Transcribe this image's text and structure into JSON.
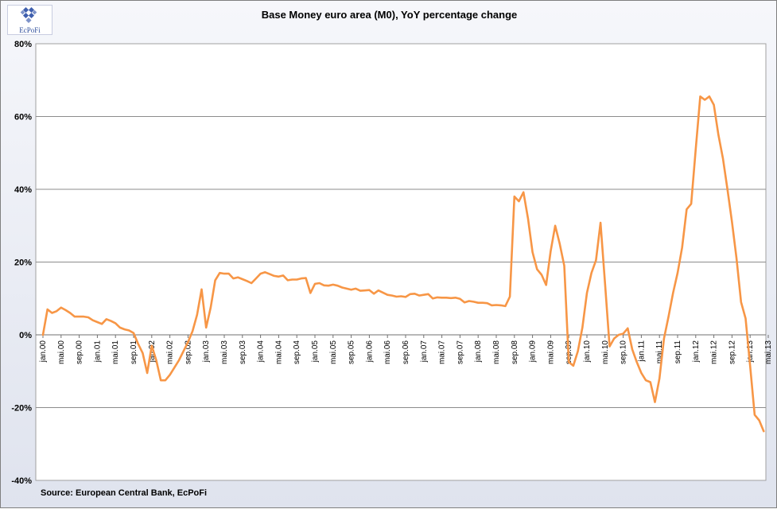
{
  "logo": {
    "text": "EcPoFi",
    "icon": "ecpofi-logo-icon"
  },
  "source": "Source: European  Central Bank, EcPoFi",
  "chart_data": {
    "type": "line",
    "title": "Base Money euro area (M0), YoY percentage change",
    "xlabel": "",
    "ylabel": "",
    "ylim": [
      -40,
      80
    ],
    "y_ticks": [
      -40,
      -20,
      0,
      20,
      40,
      60,
      80
    ],
    "y_tick_labels": [
      "-40%",
      "-20%",
      "0%",
      "20%",
      "40%",
      "60%",
      "80%"
    ],
    "grid": "horizontal",
    "legend": "none",
    "line_color": "#f79646",
    "x_ticks": [
      {
        "month": 0,
        "label": "jan.00"
      },
      {
        "month": 4,
        "label": "mai.00"
      },
      {
        "month": 8,
        "label": "sep.00"
      },
      {
        "month": 12,
        "label": "jan.01"
      },
      {
        "month": 16,
        "label": "mai.01"
      },
      {
        "month": 20,
        "label": "sep.01"
      },
      {
        "month": 24,
        "label": "jan.02"
      },
      {
        "month": 28,
        "label": "mai.02"
      },
      {
        "month": 32,
        "label": "sep.02"
      },
      {
        "month": 36,
        "label": "jan.03"
      },
      {
        "month": 40,
        "label": "mai.03"
      },
      {
        "month": 44,
        "label": "sep.03"
      },
      {
        "month": 48,
        "label": "jan.04"
      },
      {
        "month": 52,
        "label": "mai.04"
      },
      {
        "month": 56,
        "label": "sep.04"
      },
      {
        "month": 60,
        "label": "jan.05"
      },
      {
        "month": 64,
        "label": "mai.05"
      },
      {
        "month": 68,
        "label": "sep.05"
      },
      {
        "month": 72,
        "label": "jan.06"
      },
      {
        "month": 76,
        "label": "mai.06"
      },
      {
        "month": 80,
        "label": "sep.06"
      },
      {
        "month": 84,
        "label": "jan.07"
      },
      {
        "month": 88,
        "label": "mai.07"
      },
      {
        "month": 92,
        "label": "sep.07"
      },
      {
        "month": 96,
        "label": "jan.08"
      },
      {
        "month": 100,
        "label": "mai.08"
      },
      {
        "month": 104,
        "label": "sep.08"
      },
      {
        "month": 108,
        "label": "jan.09"
      },
      {
        "month": 112,
        "label": "mai.09"
      },
      {
        "month": 116,
        "label": "sep.09"
      },
      {
        "month": 120,
        "label": "jan.10"
      },
      {
        "month": 124,
        "label": "mai.10"
      },
      {
        "month": 128,
        "label": "sep.10"
      },
      {
        "month": 132,
        "label": "jan.11"
      },
      {
        "month": 136,
        "label": "mai.11"
      },
      {
        "month": 140,
        "label": "sep.11"
      },
      {
        "month": 144,
        "label": "jan.12"
      },
      {
        "month": 148,
        "label": "mai.12"
      },
      {
        "month": 152,
        "label": "sep.12"
      },
      {
        "month": 156,
        "label": "jan.13"
      },
      {
        "month": 160,
        "label": "mai.13"
      }
    ],
    "series": [
      {
        "x_start": "jan.00",
        "x_step": "1 month",
        "values": [
          0,
          7,
          6,
          6.5,
          7.5,
          6.8,
          6,
          5,
          5,
          5,
          4.8,
          4,
          3.5,
          3,
          4.3,
          3.8,
          3.2,
          2,
          1.5,
          1.2,
          0.5,
          -2.5,
          -5,
          -10.5,
          -3,
          -7,
          -12.5,
          -12.5,
          -11,
          -9,
          -7,
          -4.5,
          -2,
          1,
          5.5,
          12.5,
          2,
          7.5,
          15,
          17,
          16.8,
          16.8,
          15.5,
          15.8,
          15.3,
          14.8,
          14.2,
          15.5,
          16.8,
          17.2,
          16.7,
          16.2,
          16,
          16.3,
          15,
          15.2,
          15.2,
          15.5,
          15.6,
          11.5,
          14,
          14.2,
          13.6,
          13.5,
          13.8,
          13.5,
          13,
          12.7,
          12.4,
          12.7,
          12.1,
          12.2,
          12.3,
          11.3,
          12.2,
          11.6,
          11,
          10.8,
          10.5,
          10.6,
          10.4,
          11.2,
          11.3,
          10.8,
          11,
          11.2,
          10,
          10.3,
          10.2,
          10.2,
          10.1,
          10.2,
          9.9,
          8.9,
          9.3,
          9.1,
          8.8,
          8.8,
          8.7,
          8.1,
          8.2,
          8.1,
          7.9,
          10.5,
          38,
          36.7,
          39.2,
          32,
          22.7,
          18,
          16.5,
          13.7,
          23,
          30,
          25,
          19,
          -7.5,
          -8.5,
          -4.5,
          2,
          11.5,
          17,
          20.5,
          30.8,
          14,
          -3.2,
          -1,
          0,
          0.3,
          1.8,
          -4,
          -7.5,
          -10.5,
          -12.5,
          -13,
          -18.5,
          -12,
          -1,
          5,
          11.5,
          17,
          24,
          34.5,
          36,
          51,
          65.5,
          64.6,
          65.5,
          63.2,
          55,
          48.5,
          40,
          31,
          21,
          9,
          4.5,
          -8.5,
          -22,
          -23.5,
          -26.5
        ]
      }
    ]
  }
}
